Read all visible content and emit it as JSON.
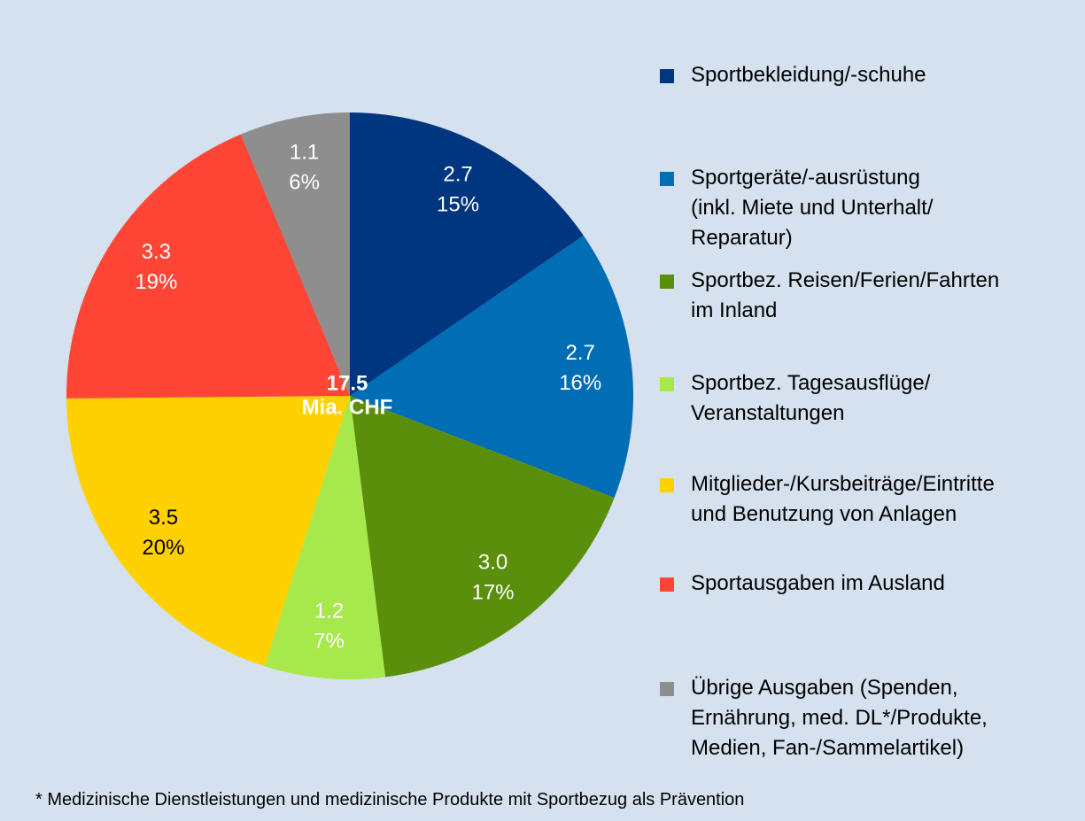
{
  "chart_data": {
    "type": "pie",
    "categories": [
      "Sportbekleidung/-schuhe",
      "Sportgeräte/-ausrüstung\n(inkl. Miete und Unterhalt/\nReparatur)",
      "Sportbez. Reisen/Ferien/Fahrten\nim Inland",
      "Sportbez. Tagesausflüge/\nVeranstaltungen",
      "Mitglieder-/Kursbeiträge/Eintritte\nund Benutzung von Anlagen",
      "Sportausgaben im Ausland",
      "Übrige Ausgaben (Spenden,\nErnährung, med. DL*/Produkte,\nMedien, Fan-/Sammelartikel)"
    ],
    "values": [
      2.7,
      2.7,
      3.0,
      1.2,
      3.5,
      3.3,
      1.1
    ],
    "value_labels": [
      "2.7",
      "2.7",
      "3.0",
      "1.2",
      "3.5",
      "3.3",
      "1.1"
    ],
    "percents": [
      15,
      16,
      17,
      7,
      20,
      19,
      6
    ],
    "percent_labels": [
      "15%",
      "16%",
      "17%",
      "7%",
      "20%",
      "19%",
      "6%"
    ],
    "colors": [
      "#00367f",
      "#006db4",
      "#5a8f0b",
      "#a7e84a",
      "#ffd100",
      "#ff4535",
      "#8e8e8e"
    ],
    "label_colors": [
      "#ffffff",
      "#ffffff",
      "#ffffff",
      "#ffffff",
      "#000000",
      "#ffffff",
      "#ffffff"
    ],
    "total": 17.5,
    "total_unit": "Mia. CHF",
    "footnote": "* Medizinische Dienstleistungen und medizinische Produkte mit Sportbezug als Prävention",
    "legend": "right"
  }
}
